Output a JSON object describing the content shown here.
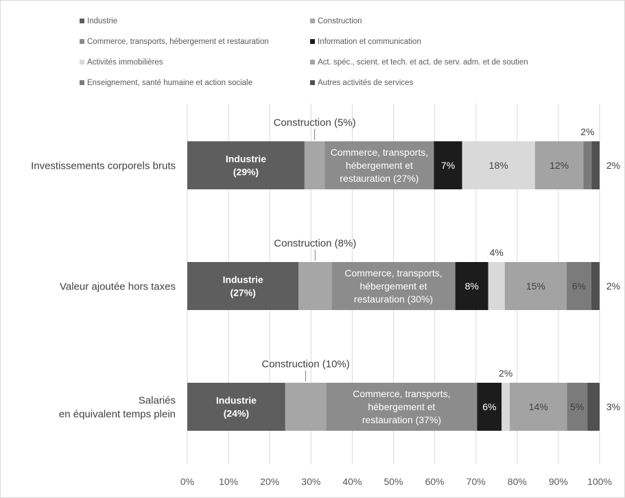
{
  "chart_data": {
    "type": "bar",
    "orientation": "horizontal",
    "stacked": true,
    "categories": [
      "Investissements corporels bruts",
      "Valeur ajoutée hors taxes",
      "Salariés\nen équivalent temps plein"
    ],
    "series": [
      {
        "name": "Industrie",
        "color": "#5e5e5e",
        "values": [
          29,
          27,
          24
        ]
      },
      {
        "name": "Construction",
        "color": "#a6a6a6",
        "values": [
          5,
          8,
          10
        ]
      },
      {
        "name": "Commerce, transports, hébergement et restauration",
        "color": "#8c8c8c",
        "values": [
          27,
          30,
          37
        ]
      },
      {
        "name": "Information et communication",
        "color": "#1c1c1c",
        "values": [
          7,
          8,
          6
        ]
      },
      {
        "name": "Activités immobilières",
        "color": "#d9d9d9",
        "values": [
          18,
          4,
          2
        ]
      },
      {
        "name": "Act. spéc., scient. et tech. et act. de serv. adm. et de soutien",
        "color": "#a3a3a3",
        "values": [
          12,
          15,
          14
        ]
      },
      {
        "name": "Enseignement, santé humaine et action sociale",
        "color": "#7b7b7b",
        "values": [
          2,
          6,
          5
        ]
      },
      {
        "name": "Autres activités de services",
        "color": "#505050",
        "values": [
          2,
          2,
          3
        ]
      }
    ],
    "data_labels": [
      [
        {
          "text": "Industrie\n(29%)",
          "pos": "inside",
          "bold": true,
          "color": "#ffffff"
        },
        {
          "text": "Construction (5%)",
          "pos": "above-callout",
          "bold": false,
          "color": "#404040"
        },
        {
          "text": "Commerce, transports,\nhébergement et\nrestauration  (27%)",
          "pos": "inside",
          "bold": false,
          "color": "#ffffff"
        },
        {
          "text": "7%",
          "pos": "inside",
          "bold": false,
          "color": "#ffffff"
        },
        {
          "text": "18%",
          "pos": "inside",
          "bold": false,
          "color": "#404040"
        },
        {
          "text": "12%",
          "pos": "inside",
          "bold": false,
          "color": "#404040"
        },
        {
          "text": "2%",
          "pos": "above",
          "bold": false,
          "color": "#404040"
        },
        {
          "text": "2%",
          "pos": "right",
          "bold": false,
          "color": "#404040"
        }
      ],
      [
        {
          "text": "Industrie\n(27%)",
          "pos": "inside",
          "bold": true,
          "color": "#ffffff"
        },
        {
          "text": "Construction (8%)",
          "pos": "above-callout",
          "bold": false,
          "color": "#404040"
        },
        {
          "text": "Commerce, transports,\nhébergement et\nrestauration (30%)",
          "pos": "inside",
          "bold": false,
          "color": "#ffffff"
        },
        {
          "text": "8%",
          "pos": "inside",
          "bold": false,
          "color": "#ffffff"
        },
        {
          "text": "4%",
          "pos": "above",
          "bold": false,
          "color": "#404040"
        },
        {
          "text": "15%",
          "pos": "inside",
          "bold": false,
          "color": "#404040"
        },
        {
          "text": "6%",
          "pos": "inside",
          "bold": false,
          "color": "#404040"
        },
        {
          "text": "2%",
          "pos": "right",
          "bold": false,
          "color": "#404040"
        }
      ],
      [
        {
          "text": "Industrie\n(24%)",
          "pos": "inside",
          "bold": true,
          "color": "#ffffff"
        },
        {
          "text": "Construction (10%)",
          "pos": "above-callout",
          "bold": false,
          "color": "#404040"
        },
        {
          "text": "Commerce, transports,\nhébergement et\nrestauration (37%)",
          "pos": "inside",
          "bold": false,
          "color": "#ffffff"
        },
        {
          "text": "6%",
          "pos": "inside",
          "bold": false,
          "color": "#ffffff"
        },
        {
          "text": "2%",
          "pos": "above",
          "bold": false,
          "color": "#404040"
        },
        {
          "text": "14%",
          "pos": "inside",
          "bold": false,
          "color": "#404040"
        },
        {
          "text": "5%",
          "pos": "inside",
          "bold": false,
          "color": "#404040"
        },
        {
          "text": "3%",
          "pos": "right",
          "bold": false,
          "color": "#404040"
        }
      ]
    ],
    "xlim": [
      0,
      100
    ],
    "x_ticks": [
      "0%",
      "10%",
      "20%",
      "30%",
      "40%",
      "50%",
      "60%",
      "70%",
      "80%",
      "90%",
      "100%"
    ],
    "grid": {
      "x": true,
      "y": false
    },
    "legend": {
      "position": "top",
      "columns": 2
    },
    "title": "",
    "xlabel": "",
    "ylabel": ""
  }
}
